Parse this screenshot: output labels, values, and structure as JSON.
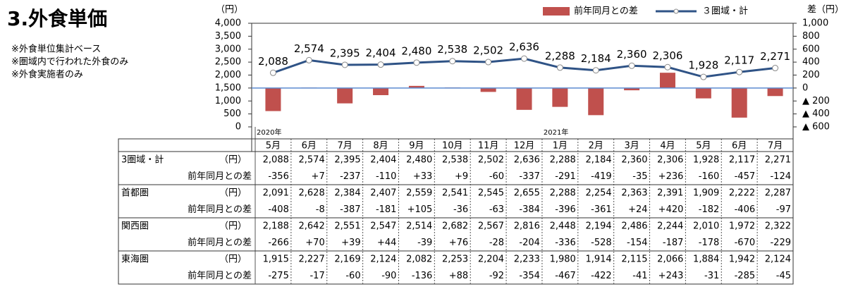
{
  "header": {
    "title": "3.外食単価",
    "notes": [
      "※外食単位集計ベース",
      "※圏域内で行われた外食のみ",
      "※外食実施者のみ"
    ]
  },
  "chart_data": {
    "type": "bar-line",
    "y_unit": "（円）",
    "y2_unit": "差（円）",
    "categories": [
      "5月",
      "6月",
      "7月",
      "8月",
      "9月",
      "10月",
      "11月",
      "12月",
      "1月",
      "2月",
      "3月",
      "4月",
      "5月",
      "6月",
      "7月"
    ],
    "year_labels": [
      "2020年",
      null,
      null,
      null,
      null,
      null,
      null,
      null,
      "2021年",
      null,
      null,
      null,
      null,
      null,
      null
    ],
    "ylim": [
      0,
      4000
    ],
    "yticks": [
      0,
      {
        "value": 500,
        "label": "500"
      },
      {
        "value": 1000,
        "label": "1,000"
      },
      {
        "value": 1500,
        "label": "1,500"
      },
      {
        "value": 2000,
        "label": "2,000"
      },
      {
        "value": 2500,
        "label": "2,500"
      },
      {
        "value": 3000,
        "label": "3,000"
      },
      {
        "value": 3500,
        "label": "3,500"
      },
      {
        "value": 4000,
        "label": "4,000"
      }
    ],
    "y2lim": [
      -600,
      1000
    ],
    "y2ticks": [
      {
        "value": -600,
        "label": "▲ 600"
      },
      {
        "value": -400,
        "label": "▲ 400"
      },
      {
        "value": -200,
        "label": "▲ 200"
      },
      0,
      200,
      400,
      600,
      800,
      {
        "value": 1000,
        "label": "1,000"
      }
    ],
    "series": [
      {
        "name": "前年同月との差",
        "type": "bar",
        "axis": "y2",
        "color": "#c0504d",
        "values": [
          -356,
          7,
          -237,
          -110,
          33,
          9,
          -60,
          -337,
          -291,
          -419,
          -35,
          236,
          -160,
          -457,
          -124
        ]
      },
      {
        "name": "３圏域・計",
        "type": "line",
        "axis": "y",
        "color": "#2f5386",
        "values": [
          2088,
          2574,
          2395,
          2404,
          2480,
          2538,
          2502,
          2636,
          2288,
          2184,
          2360,
          2306,
          1928,
          2117,
          2271
        ],
        "value_labels": [
          "2,088",
          "2,574",
          "2,395",
          "2,404",
          "2,480",
          "2,538",
          "2,502",
          "2,636",
          "2,288",
          "2,184",
          "2,360",
          "2,306",
          "1,928",
          "2,117",
          "2,271"
        ]
      }
    ]
  },
  "table": {
    "groups": [
      {
        "name": "3圏域・計",
        "unit": "（円）",
        "values": [
          "2,088",
          "2,574",
          "2,395",
          "2,404",
          "2,480",
          "2,538",
          "2,502",
          "2,636",
          "2,288",
          "2,184",
          "2,360",
          "2,306",
          "1,928",
          "2,117",
          "2,271"
        ],
        "diff_label": "前年同月との差",
        "diffs": [
          "-356",
          "+7",
          "-237",
          "-110",
          "+33",
          "+9",
          "-60",
          "-337",
          "-291",
          "-419",
          "-35",
          "+236",
          "-160",
          "-457",
          "-124"
        ]
      },
      {
        "name": "首都圏",
        "unit": "（円）",
        "values": [
          "2,091",
          "2,628",
          "2,384",
          "2,407",
          "2,559",
          "2,541",
          "2,545",
          "2,655",
          "2,288",
          "2,254",
          "2,363",
          "2,391",
          "1,909",
          "2,222",
          "2,287"
        ],
        "diff_label": "前年同月との差",
        "diffs": [
          "-408",
          "-8",
          "-387",
          "-181",
          "+105",
          "-36",
          "-63",
          "-384",
          "-396",
          "-361",
          "+24",
          "+420",
          "-182",
          "-406",
          "-97"
        ]
      },
      {
        "name": "関西圏",
        "unit": "（円）",
        "values": [
          "2,188",
          "2,642",
          "2,551",
          "2,547",
          "2,514",
          "2,682",
          "2,567",
          "2,816",
          "2,448",
          "2,194",
          "2,486",
          "2,244",
          "2,010",
          "1,972",
          "2,322"
        ],
        "diff_label": "前年同月との差",
        "diffs": [
          "-266",
          "+70",
          "+39",
          "+44",
          "-39",
          "+76",
          "-28",
          "-204",
          "-336",
          "-528",
          "-154",
          "-187",
          "-178",
          "-670",
          "-229"
        ]
      },
      {
        "name": "東海圏",
        "unit": "（円）",
        "values": [
          "1,915",
          "2,227",
          "2,169",
          "2,124",
          "2,082",
          "2,253",
          "2,204",
          "2,233",
          "1,980",
          "1,914",
          "2,115",
          "2,066",
          "1,884",
          "1,942",
          "2,124"
        ],
        "diff_label": "前年同月との差",
        "diffs": [
          "-275",
          "-17",
          "-60",
          "-90",
          "-136",
          "+88",
          "-92",
          "-354",
          "-467",
          "-422",
          "-41",
          "+243",
          "-31",
          "-285",
          "-45"
        ]
      }
    ]
  }
}
